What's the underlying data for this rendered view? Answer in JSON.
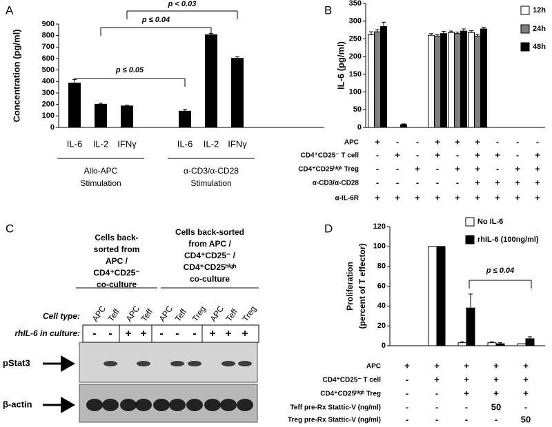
{
  "chart_data": [
    {
      "panel": "A",
      "type": "bar",
      "y_label": "Concentration (pg/ml)",
      "color": "#000000",
      "ylim": [
        0,
        900
      ],
      "yticks": [
        0,
        100,
        200,
        300,
        400,
        500,
        600,
        700,
        800,
        900
      ],
      "groups": [
        {
          "label": [
            "Allo-APC",
            "Stimulation"
          ],
          "categories": [
            "IL-6",
            "IL-2",
            "IFNγ"
          ],
          "values": [
            390,
            205,
            190
          ],
          "errors": [
            28,
            6,
            5
          ]
        },
        {
          "label": [
            "α-CD3/α-CD28",
            "Stimulation"
          ],
          "categories": [
            "IL-6",
            "IL-2",
            "IFNγ"
          ],
          "values": [
            145,
            810,
            605
          ],
          "errors": [
            14,
            8,
            10
          ]
        }
      ],
      "annotations": [
        "p ≤ 0.05",
        "p ≤ 0.04",
        "p < 0.03"
      ]
    },
    {
      "panel": "B",
      "type": "grouped_bar",
      "y_label": "IL-6 (pg/ml)",
      "ylim": [
        0,
        350
      ],
      "yticks": [
        0,
        50,
        100,
        150,
        200,
        250,
        300,
        350
      ],
      "legend": "upper right",
      "series": [
        {
          "name": "12h",
          "color": "#ffffff",
          "values": [
            262,
            0,
            0,
            260,
            268,
            268,
            0,
            0,
            0
          ],
          "errors": [
            8,
            0,
            0,
            5,
            4,
            5,
            0,
            0,
            0
          ]
        },
        {
          "name": "24h",
          "color": "#808080",
          "values": [
            270,
            0,
            0,
            258,
            265,
            258,
            0,
            0,
            0
          ],
          "errors": [
            6,
            0,
            0,
            4,
            4,
            4,
            0,
            0,
            0
          ]
        },
        {
          "name": "48h",
          "color": "#000000",
          "values": [
            285,
            8,
            0,
            265,
            272,
            278,
            0,
            0,
            0
          ],
          "errors": [
            12,
            2,
            0,
            6,
            6,
            5,
            0,
            0,
            0
          ]
        }
      ],
      "conditions": [
        {
          "label": "APC",
          "marks": [
            "+",
            "-",
            "-",
            "+",
            "+",
            "+",
            "-",
            "-",
            "-"
          ]
        },
        {
          "label": "CD4⁺CD25⁻ T cell",
          "marks": [
            "-",
            "+",
            "-",
            "+",
            "-",
            "+",
            "+",
            "-",
            "+"
          ]
        },
        {
          "label": "CD4⁺CD25ʰⁱᵍʰ Treg",
          "marks": [
            "-",
            "-",
            "+",
            "-",
            "+",
            "+",
            "-",
            "+",
            "+"
          ]
        },
        {
          "label": "α-CD3/α-CD28",
          "marks": [
            "-",
            "-",
            "-",
            "-",
            "-",
            "+",
            "+",
            "+",
            "+"
          ]
        },
        {
          "label": "α-IL-6R",
          "marks": [
            "+",
            "+",
            "+",
            "+",
            "+",
            "+",
            "+",
            "+",
            "+"
          ]
        }
      ],
      "annotations": []
    },
    {
      "panel": "D",
      "type": "grouped_bar",
      "y_label": [
        "Proliferation",
        "(percent of T effector)"
      ],
      "ylim": [
        0,
        120
      ],
      "yticks": [
        0,
        20,
        40,
        60,
        80,
        100,
        120
      ],
      "legend": "upper center",
      "series": [
        {
          "name": "No IL-6",
          "color": "#ffffff",
          "values": [
            0,
            100,
            3,
            3,
            2
          ],
          "errors": [
            0,
            0,
            1,
            1,
            0
          ]
        },
        {
          "name": "rhIL-6 (100ng/ml)",
          "color": "#000000",
          "values": [
            0,
            100,
            38,
            2,
            7
          ],
          "errors": [
            0,
            0,
            14,
            1,
            2
          ]
        }
      ],
      "conditions": [
        {
          "label": "APC",
          "marks": [
            "+",
            "+",
            "+",
            "+",
            "+"
          ]
        },
        {
          "label": "CD4⁺CD25⁻ T cell",
          "marks": [
            "-",
            "+",
            "+",
            "+",
            "+"
          ]
        },
        {
          "label": "CD4⁺CD25ʰⁱᵍʰ Treg",
          "marks": [
            "-",
            "-",
            "+",
            "+",
            "+"
          ]
        },
        {
          "label": "Teff pre-Rx Stattic-V (ng/ml)",
          "marks": [
            "-",
            "-",
            "-",
            "50",
            "-"
          ]
        },
        {
          "label": "Treg pre-Rx Stattic-V (ng/ml)",
          "marks": [
            "-",
            "-",
            "-",
            "-",
            "50"
          ]
        }
      ],
      "annotations": [
        "p ≤ 0.04"
      ]
    }
  ],
  "blot": {
    "panel": "C",
    "headers": [
      [
        "Cells back-",
        "sorted from",
        "APC /",
        "CD4⁺CD25⁻",
        "co-culture"
      ],
      [
        "Cells back-sorted",
        "from APC /",
        "CD4⁺CD25⁻ /",
        "CD4⁺CD25ʰⁱᵍʰ",
        "co-culture"
      ]
    ],
    "cell_type_label": "Cell type:",
    "lanes": [
      "APC",
      "Teff",
      "APC",
      "Teff",
      "APC",
      "Teff",
      "Treg",
      "APC",
      "Teff",
      "Treg"
    ],
    "rhil6_label": "rhIL-6 in culture:",
    "rhil6": [
      "-",
      "-",
      "+",
      "+",
      "-",
      "-",
      "-",
      "+",
      "+",
      "+"
    ],
    "rows": [
      "pStat3",
      "β-actin"
    ]
  }
}
